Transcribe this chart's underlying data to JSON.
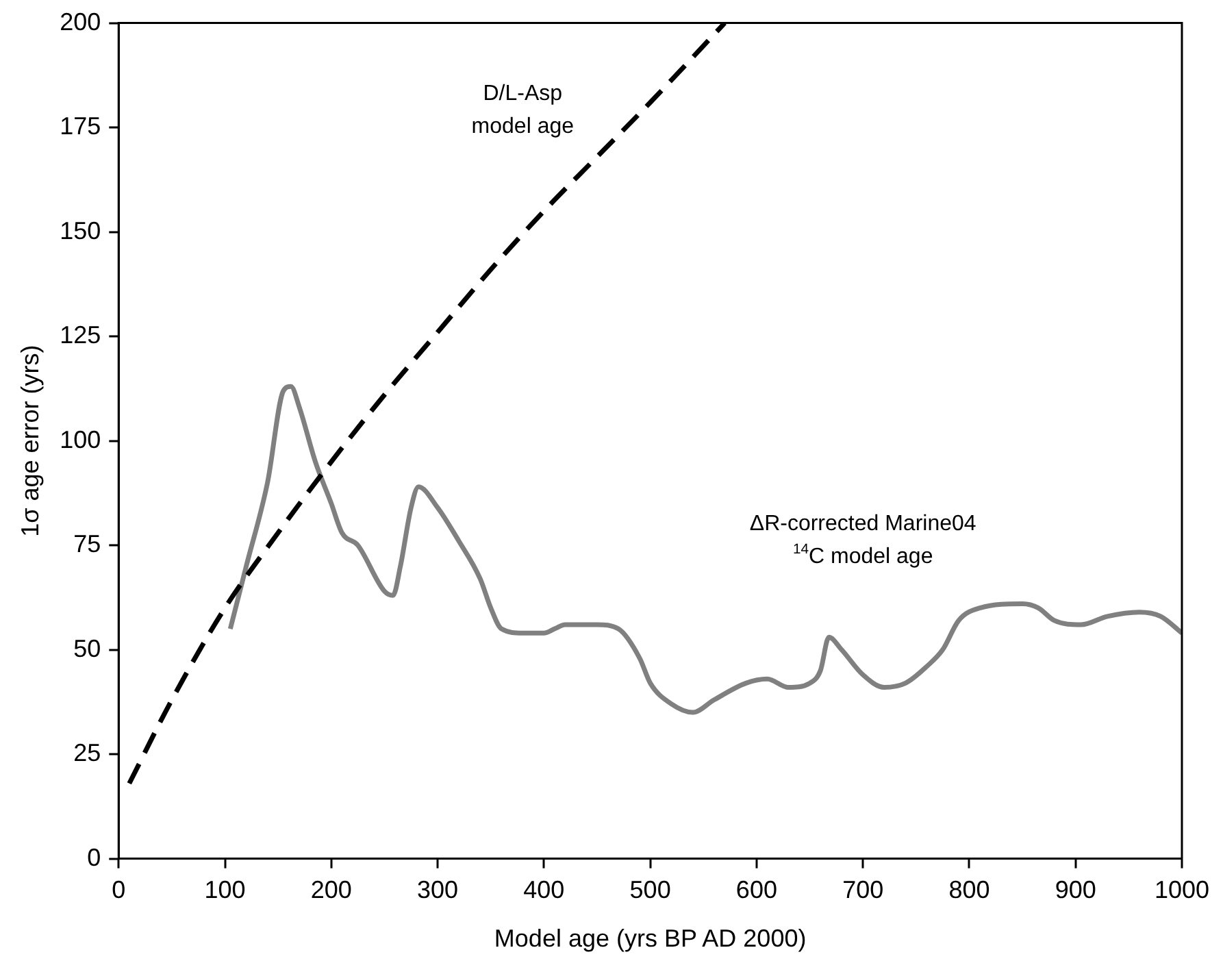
{
  "chart_data": {
    "type": "line",
    "xlabel": "Model age (yrs BP AD 2000)",
    "ylabel": "1σ age error (yrs)",
    "xlim": [
      0,
      1000
    ],
    "xticks": [
      0,
      100,
      200,
      300,
      400,
      500,
      600,
      700,
      800,
      900,
      1000
    ],
    "ylim": [
      0,
      200
    ],
    "yticks": [
      0,
      25,
      50,
      75,
      100,
      125,
      150,
      175,
      200
    ],
    "grid": false,
    "legend": false,
    "marker": "none",
    "series": [
      {
        "color": "#000000",
        "line_style": "dashed",
        "x": [
          10,
          50,
          100,
          150,
          200,
          250,
          300,
          350,
          400,
          450,
          500,
          570
        ],
        "values": [
          18,
          38,
          60,
          78,
          95,
          111,
          126,
          141,
          155,
          168,
          181,
          200
        ]
      },
      {
        "color": "#808080",
        "line_style": "solid",
        "x": [
          105,
          120,
          140,
          155,
          162,
          170,
          185,
          200,
          210,
          225,
          250,
          258,
          265,
          275,
          282,
          300,
          320,
          340,
          350,
          360,
          380,
          400,
          410,
          420,
          450,
          470,
          490,
          500,
          520,
          540,
          560,
          590,
          610,
          630,
          650,
          660,
          668,
          680,
          700,
          720,
          740,
          760,
          775,
          790,
          810,
          850,
          865,
          880,
          905,
          930,
          960,
          980,
          1000
        ],
        "values": [
          55,
          70,
          90,
          112,
          113,
          108,
          95,
          85,
          78,
          75,
          64,
          63,
          70,
          84,
          89,
          84,
          76,
          67,
          60,
          55,
          54,
          54,
          55,
          56,
          56,
          55,
          48,
          42,
          37,
          35,
          38,
          42,
          43,
          41,
          42,
          45,
          53,
          50,
          44,
          41,
          42,
          46,
          50,
          57,
          60,
          61,
          60,
          57,
          56,
          58,
          59,
          58,
          54
        ]
      }
    ],
    "annotations": [
      "D/L-Asp\nmodel age",
      "ΔR-corrected Marine04\n$^{14}$C model age"
    ]
  }
}
